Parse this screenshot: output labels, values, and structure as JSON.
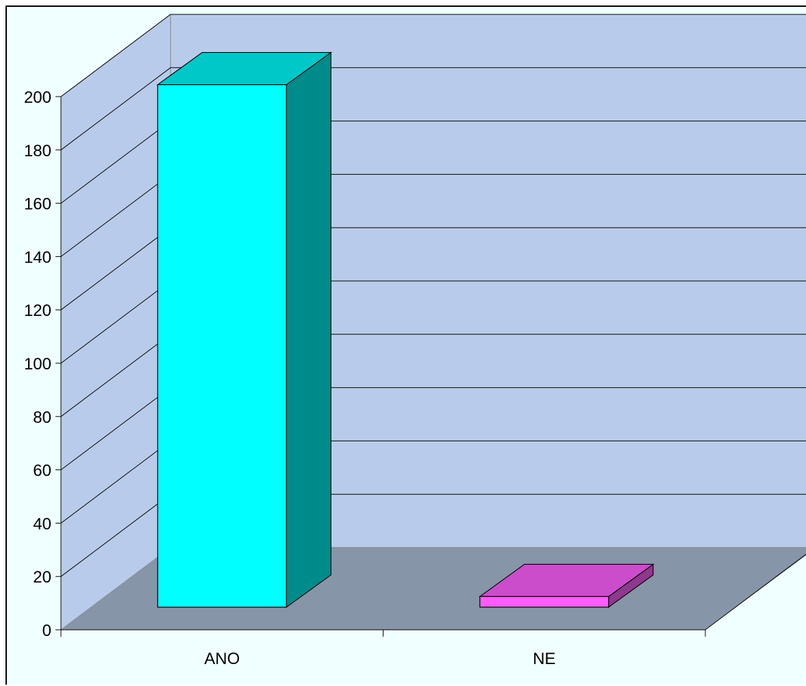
{
  "chart_data": {
    "type": "bar",
    "style": "3d-column",
    "categories": [
      "ANO",
      "NE"
    ],
    "values": [
      196,
      4
    ],
    "series": [
      {
        "values": [
          196,
          4
        ]
      }
    ],
    "ylim": [
      0,
      200
    ],
    "yticks": [
      "0",
      "20",
      "40",
      "60",
      "80",
      "100",
      "120",
      "140",
      "160",
      "180",
      "200"
    ],
    "grid": true,
    "legend": "none",
    "colors": {
      "ANO_front": "#00ffff",
      "ANO_top": "#00c8c8",
      "ANO_side": "#008b8b",
      "NE_front": "#ff5cff",
      "NE_top": "#cc4dcc",
      "NE_side": "#8e388e",
      "back_wall": "#b9cbea",
      "side_wall": "#b9cbea",
      "floor": "#8795a9",
      "background": "#f0ffff"
    }
  }
}
